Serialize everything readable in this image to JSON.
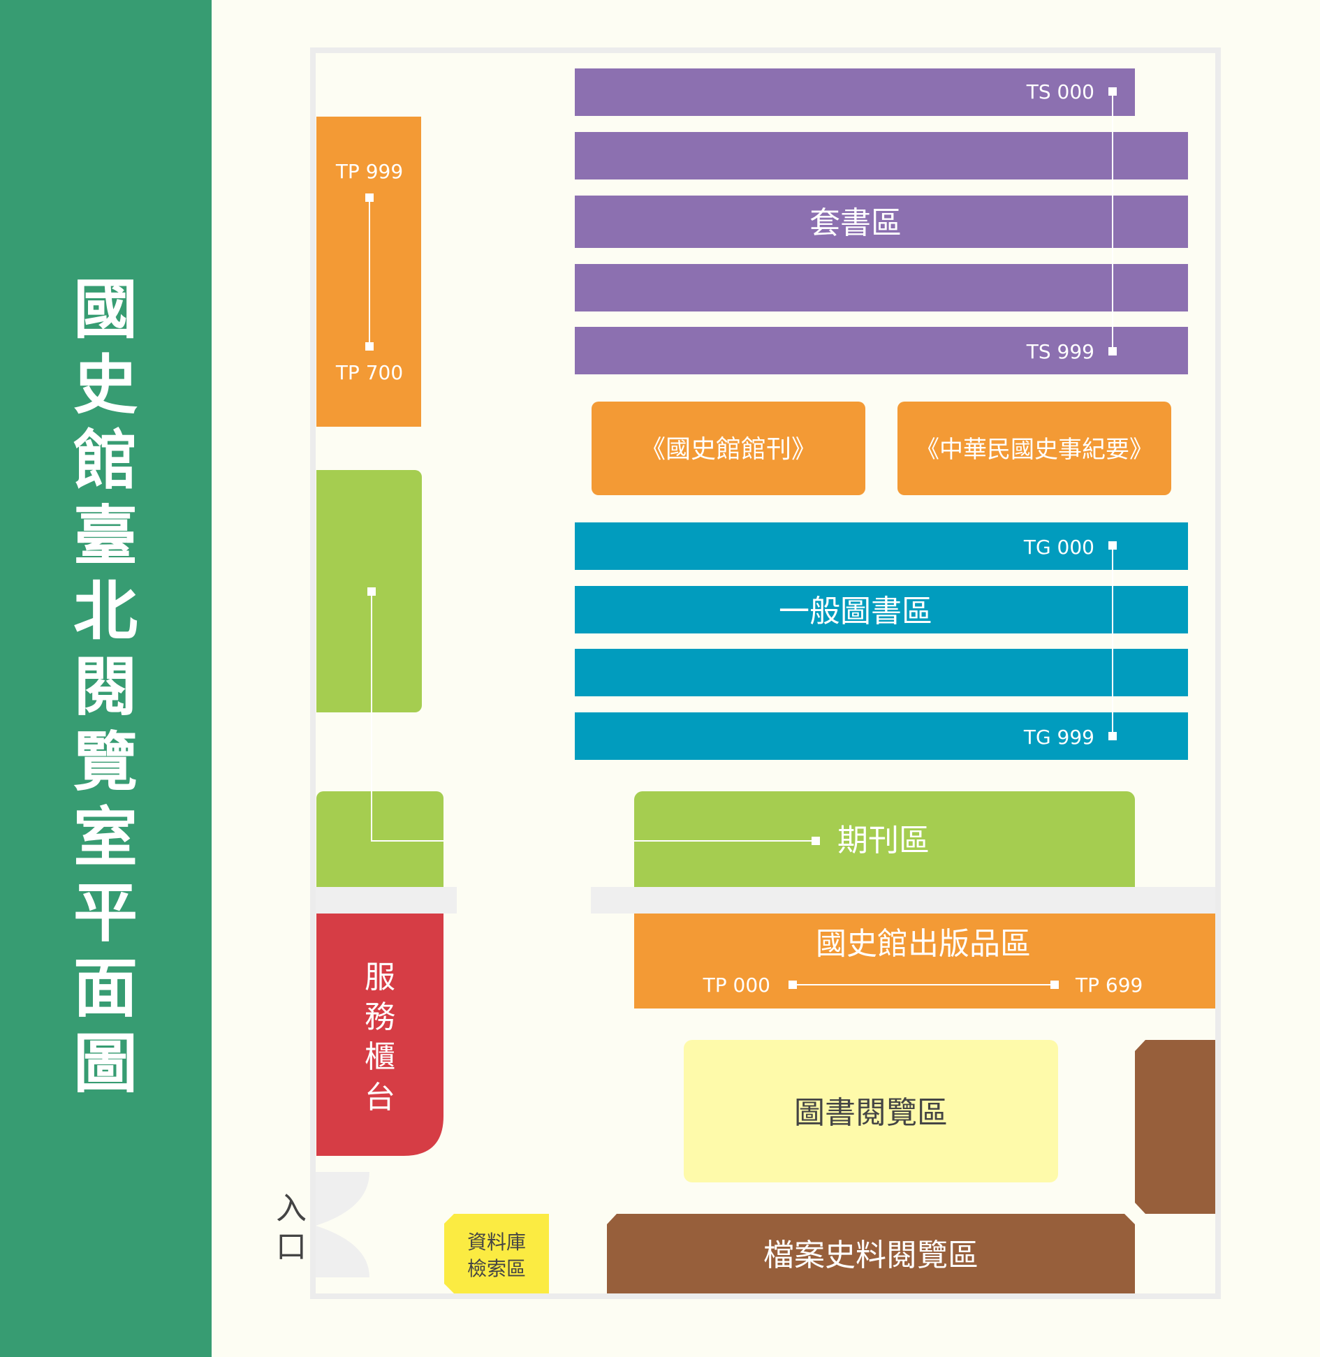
{
  "title": "國史館臺北閱覽室平面圖",
  "colors": {
    "sidebar": "#379c72",
    "purple": "#8c70b0",
    "orange": "#f39a35",
    "teal": "#019cbe",
    "green": "#a5cd50",
    "red": "#d63d45",
    "lightyellow": "#fefaaa",
    "yellow": "#fbeb42",
    "brown": "#975f3b",
    "wall": "#efefef"
  },
  "zones": {
    "series": "套書區",
    "journal_1": "《國史館館刊》",
    "journal_2": "《中華民國史事紀要》",
    "general": "一般圖書區",
    "periodicals": "期刊區",
    "publications": "國史館出版品區",
    "service_desk": "服務櫃台",
    "reading": "圖書閱覽區",
    "database_line1": "資料庫",
    "database_line2": "檢索區",
    "archives": "檔案史料閱覽區",
    "entrance": "入口"
  },
  "call_numbers": {
    "ts_start": "TS 000",
    "ts_end": "TS 999",
    "tp_high_start": "TP 999",
    "tp_high_end": "TP 700",
    "tg_start": "TG 000",
    "tg_end": "TG 999",
    "tp_low_start": "TP 000",
    "tp_low_end": "TP 699"
  }
}
